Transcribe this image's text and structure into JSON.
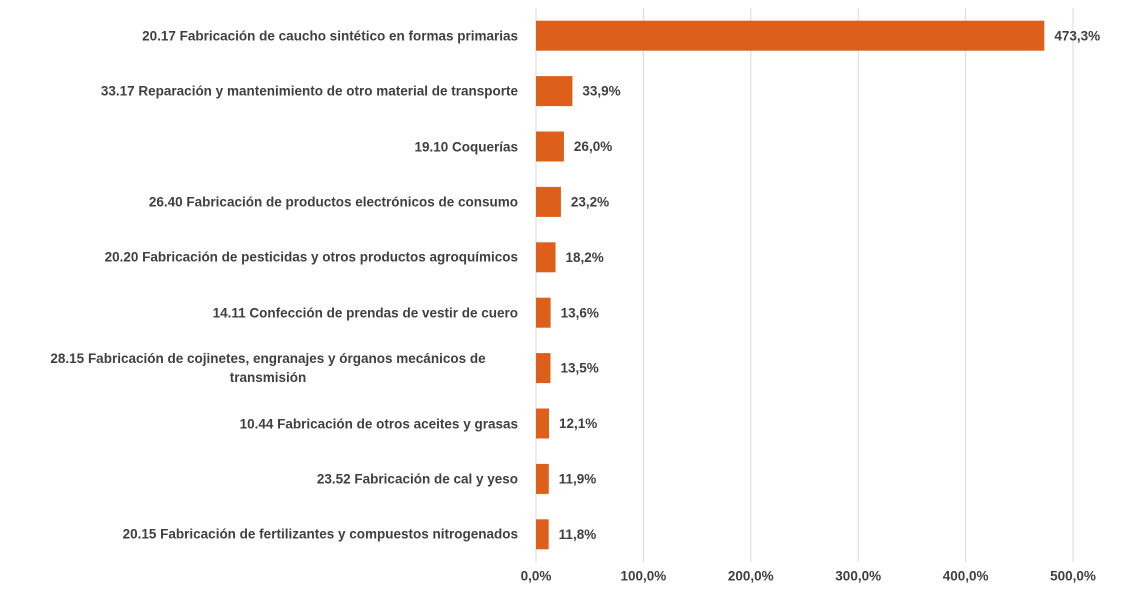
{
  "chart_data": {
    "type": "barh",
    "categories": [
      "20.17 Fabricación de caucho sintético en formas primarias",
      "33.17 Reparación y mantenimiento de otro material de transporte",
      "19.10 Coquerías",
      "26.40 Fabricación de productos electrónicos de consumo",
      "20.20 Fabricación de pesticidas y otros productos agroquímicos",
      "14.11 Confección de prendas de vestir de cuero",
      "28.15 Fabricación de cojinetes, engranajes y órganos mecánicos de transmisión",
      "10.44 Fabricación de otros aceites y grasas",
      "23.52 Fabricación de cal y yeso",
      "20.15 Fabricación de fertilizantes y compuestos nitrogenados"
    ],
    "values": [
      473.3,
      33.9,
      26.0,
      23.2,
      18.2,
      13.6,
      13.5,
      12.1,
      11.9,
      11.8
    ],
    "value_labels": [
      "473,3%",
      "33,9%",
      "26,0%",
      "23,2%",
      "18,2%",
      "13,6%",
      "13,5%",
      "12,1%",
      "11,9%",
      "11,8%"
    ],
    "color": "#dd5f1a",
    "xlim": [
      0,
      500
    ],
    "xticks": [
      {
        "value": 0,
        "label": "0,0%"
      },
      {
        "value": 100,
        "label": "100,0%"
      },
      {
        "value": 200,
        "label": "200,0%"
      },
      {
        "value": 300,
        "label": "300,0%"
      },
      {
        "value": 400,
        "label": "400,0%"
      },
      {
        "value": 500,
        "label": "500,0%"
      }
    ],
    "grid": true
  }
}
